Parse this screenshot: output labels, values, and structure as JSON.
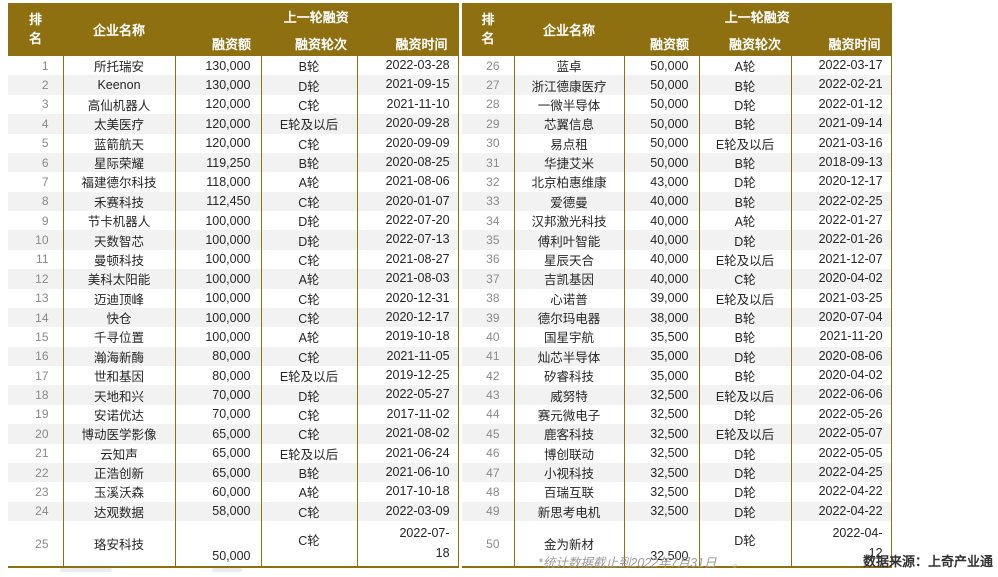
{
  "header": {
    "rank": "排名",
    "company": "企业名称",
    "group": "上一轮融资",
    "amount": "融资额",
    "round": "融资轮次",
    "date": "融资时间"
  },
  "footer": {
    "note": "*统计数据截止到2022年7月31日",
    "note_suffix": "。",
    "source": "数据来源：上奇产业通"
  },
  "colors": {
    "header_bg": "#8E7010",
    "grid_line": "#8E7010",
    "stripe": "#F2F2F2",
    "rank_text": "#8a8a8a",
    "body_text": "#262626",
    "note_text": "#9a9a9a"
  },
  "chart_data": {
    "type": "table",
    "column_group": "上一轮融资",
    "columns": [
      "排名",
      "企业名称",
      "融资额",
      "融资轮次",
      "融资时间"
    ],
    "rows": [
      [
        1,
        "所托瑞安",
        "130,000",
        "B轮",
        "2022-03-28"
      ],
      [
        2,
        "Keenon",
        "130,000",
        "D轮",
        "2021-09-15"
      ],
      [
        3,
        "高仙机器人",
        "120,000",
        "C轮",
        "2021-11-10"
      ],
      [
        4,
        "太美医疗",
        "120,000",
        "E轮及以后",
        "2020-09-28"
      ],
      [
        5,
        "蓝箭航天",
        "120,000",
        "C轮",
        "2020-09-09"
      ],
      [
        6,
        "星际荣耀",
        "119,250",
        "B轮",
        "2020-08-25"
      ],
      [
        7,
        "福建德尔科技",
        "118,000",
        "A轮",
        "2021-08-06"
      ],
      [
        8,
        "禾赛科技",
        "112,450",
        "C轮",
        "2020-01-07"
      ],
      [
        9,
        "节卡机器人",
        "100,000",
        "D轮",
        "2022-07-20"
      ],
      [
        10,
        "天数智芯",
        "100,000",
        "D轮",
        "2022-07-13"
      ],
      [
        11,
        "曼顿科技",
        "100,000",
        "C轮",
        "2021-08-27"
      ],
      [
        12,
        "美科太阳能",
        "100,000",
        "A轮",
        "2021-08-03"
      ],
      [
        13,
        "迈迪顶峰",
        "100,000",
        "C轮",
        "2020-12-31"
      ],
      [
        14,
        "快仓",
        "100,000",
        "C轮",
        "2020-12-17"
      ],
      [
        15,
        "千寻位置",
        "100,000",
        "A轮",
        "2019-10-18"
      ],
      [
        16,
        "瀚海新酶",
        "80,000",
        "C轮",
        "2021-11-05"
      ],
      [
        17,
        "世和基因",
        "80,000",
        "E轮及以后",
        "2019-12-25"
      ],
      [
        18,
        "天地和兴",
        "70,000",
        "D轮",
        "2022-05-27"
      ],
      [
        19,
        "安诺优达",
        "70,000",
        "C轮",
        "2017-11-02"
      ],
      [
        20,
        "博动医学影像",
        "65,000",
        "C轮",
        "2021-08-02"
      ],
      [
        21,
        "云知声",
        "65,000",
        "E轮及以后",
        "2021-06-24"
      ],
      [
        22,
        "正浩创新",
        "65,000",
        "B轮",
        "2021-06-10"
      ],
      [
        23,
        "玉溪沃森",
        "60,000",
        "A轮",
        "2017-10-18"
      ],
      [
        24,
        "达观数据",
        "58,000",
        "C轮",
        "2022-03-09"
      ],
      [
        25,
        "珞安科技",
        "50,000",
        "C轮",
        "2022-07-18"
      ],
      [
        26,
        "蓝卓",
        "50,000",
        "A轮",
        "2022-03-17"
      ],
      [
        27,
        "浙江德康医疗",
        "50,000",
        "B轮",
        "2022-02-21"
      ],
      [
        28,
        "一微半导体",
        "50,000",
        "D轮",
        "2022-01-12"
      ],
      [
        29,
        "芯翼信息",
        "50,000",
        "B轮",
        "2021-09-14"
      ],
      [
        30,
        "易点租",
        "50,000",
        "E轮及以后",
        "2021-03-16"
      ],
      [
        31,
        "华捷艾米",
        "50,000",
        "B轮",
        "2018-09-13"
      ],
      [
        32,
        "北京柏惠维康",
        "43,000",
        "D轮",
        "2020-12-17"
      ],
      [
        33,
        "爱德曼",
        "40,000",
        "B轮",
        "2022-02-25"
      ],
      [
        34,
        "汉邦激光科技",
        "40,000",
        "A轮",
        "2022-01-27"
      ],
      [
        35,
        "傅利叶智能",
        "40,000",
        "D轮",
        "2022-01-26"
      ],
      [
        36,
        "星辰天合",
        "40,000",
        "E轮及以后",
        "2021-12-07"
      ],
      [
        37,
        "吉凯基因",
        "40,000",
        "C轮",
        "2020-04-02"
      ],
      [
        38,
        "心诺普",
        "39,000",
        "E轮及以后",
        "2021-03-25"
      ],
      [
        39,
        "德尔玛电器",
        "38,000",
        "B轮",
        "2020-07-04"
      ],
      [
        40,
        "国星宇航",
        "35,500",
        "B轮",
        "2021-11-20"
      ],
      [
        41,
        "灿芯半导体",
        "35,000",
        "D轮",
        "2020-08-06"
      ],
      [
        42,
        "矽睿科技",
        "35,000",
        "B轮",
        "2020-04-02"
      ],
      [
        43,
        "威努特",
        "32,500",
        "E轮及以后",
        "2022-06-06"
      ],
      [
        44,
        "赛元微电子",
        "32,500",
        "D轮",
        "2022-05-26"
      ],
      [
        45,
        "鹿客科技",
        "32,500",
        "E轮及以后",
        "2022-05-07"
      ],
      [
        46,
        "博创联动",
        "32,500",
        "D轮",
        "2022-05-05"
      ],
      [
        47,
        "小视科技",
        "32,500",
        "D轮",
        "2022-04-25"
      ],
      [
        48,
        "百瑞互联",
        "32,500",
        "D轮",
        "2022-04-22"
      ],
      [
        49,
        "新思考电机",
        "32,500",
        "D轮",
        "2022-04-22"
      ],
      [
        50,
        "金为新材",
        "32,500",
        "D轮",
        "2022-04-12"
      ]
    ]
  }
}
